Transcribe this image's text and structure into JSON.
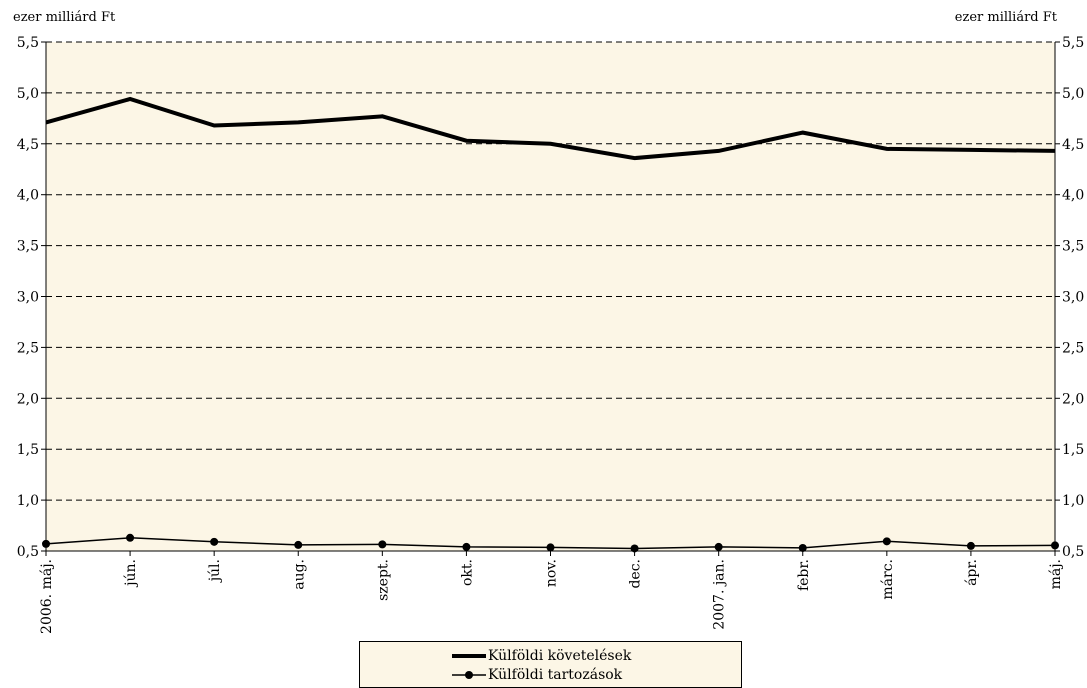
{
  "chart_data": {
    "type": "line",
    "y_axis_title_left": "ezer milliárd Ft",
    "y_axis_title_right": "ezer milliárd Ft",
    "categories": [
      "2006. máj.",
      "jún.",
      "júl.",
      "aug.",
      "szept.",
      "okt.",
      "nov.",
      "dec.",
      "2007. jan.",
      "febr.",
      "márc.",
      "ápr.",
      "máj."
    ],
    "ylim": [
      0.5,
      5.5
    ],
    "yticks": [
      "0,5",
      "1,0",
      "1,5",
      "2,0",
      "2,5",
      "3,0",
      "3,5",
      "4,0",
      "4,5",
      "5,0",
      "5,5"
    ],
    "grid": true,
    "plot_background": "#fcf6e6",
    "series": [
      {
        "name": "Külföldi követelések",
        "values": [
          4.71,
          4.94,
          4.68,
          4.71,
          4.77,
          4.53,
          4.5,
          4.36,
          4.43,
          4.61,
          4.45,
          4.44,
          4.43
        ],
        "color": "#000000",
        "style": "thick line, no markers"
      },
      {
        "name": "Külföldi tartozások",
        "values": [
          0.57,
          0.63,
          0.59,
          0.56,
          0.565,
          0.54,
          0.535,
          0.525,
          0.54,
          0.53,
          0.595,
          0.55,
          0.555
        ],
        "color": "#000000",
        "style": "thin line with circle markers"
      }
    ],
    "legend_position": "bottom-center"
  }
}
